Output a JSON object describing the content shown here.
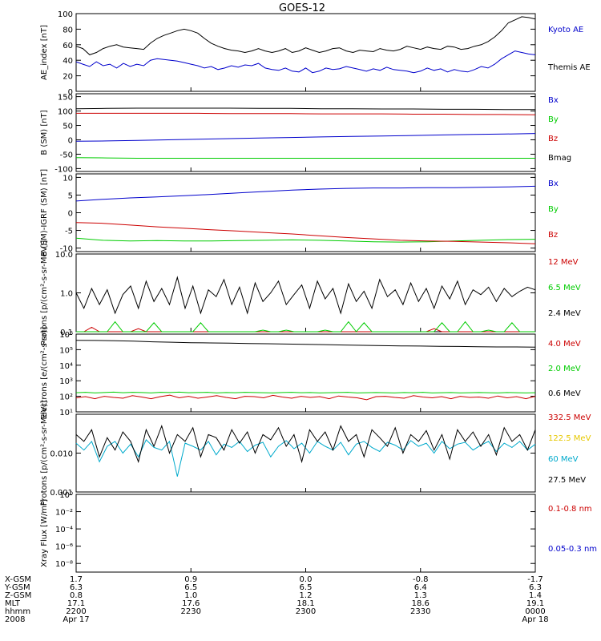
{
  "title": "GOES-12",
  "colors": {
    "black": "#000000",
    "blue": "#0000cc",
    "red": "#cc0000",
    "green": "#00cc00",
    "cyan": "#00aacc",
    "yellow": "#e6c800"
  },
  "chart_data": [
    {
      "type": "line",
      "ylabel": "AE_index [nT]",
      "scale": "linear",
      "ylim": [
        0,
        100
      ],
      "ticks": [
        "0",
        "20",
        "40",
        "60",
        "80",
        "100"
      ],
      "ticks_v": [
        0,
        20,
        40,
        60,
        80,
        100
      ],
      "series": [
        {
          "name": "Kyoto AE",
          "color": "blue",
          "values": [
            38,
            35,
            32,
            38,
            33,
            35,
            30,
            36,
            32,
            35,
            33,
            40,
            42,
            41,
            40,
            39,
            37,
            35,
            33,
            30,
            32,
            28,
            30,
            33,
            31,
            34,
            33,
            36,
            30,
            28,
            27,
            30,
            26,
            25,
            30,
            24,
            26,
            30,
            28,
            29,
            32,
            30,
            28,
            26,
            29,
            27,
            31,
            28,
            27,
            26,
            24,
            26,
            30,
            27,
            29,
            25,
            28,
            26,
            25,
            28,
            32,
            30,
            35,
            42,
            47,
            52,
            50,
            48,
            47
          ]
        },
        {
          "name": "Themis AE",
          "color": "black",
          "values": [
            58,
            55,
            47,
            50,
            55,
            58,
            60,
            57,
            56,
            55,
            54,
            62,
            68,
            72,
            75,
            78,
            80,
            78,
            75,
            68,
            62,
            58,
            55,
            53,
            52,
            50,
            52,
            55,
            52,
            50,
            52,
            55,
            50,
            52,
            56,
            53,
            50,
            52,
            55,
            56,
            52,
            50,
            53,
            52,
            51,
            55,
            53,
            52,
            54,
            58,
            56,
            54,
            57,
            55,
            54,
            58,
            57,
            54,
            55,
            58,
            60,
            64,
            70,
            78,
            88,
            92,
            96,
            95,
            93
          ]
        }
      ]
    },
    {
      "type": "line",
      "ylabel": "B (SM) [nT]",
      "scale": "linear",
      "ylim": [
        -110,
        160
      ],
      "ticks": [
        "-100",
        "-50",
        "0",
        "50",
        "100",
        "150"
      ],
      "ticks_v": [
        -100,
        -50,
        0,
        50,
        100,
        150
      ],
      "series": [
        {
          "name": "Bx",
          "color": "blue",
          "values": [
            -5,
            -4,
            -2,
            0,
            2,
            4,
            6,
            8,
            10,
            12,
            13,
            15,
            17,
            19,
            20,
            22
          ]
        },
        {
          "name": "By",
          "color": "green",
          "values": [
            -62,
            -63,
            -64,
            -64,
            -64,
            -64,
            -64,
            -64,
            -64,
            -64,
            -64,
            -64,
            -64,
            -64,
            -64,
            -64
          ]
        },
        {
          "name": "Bz",
          "color": "red",
          "values": [
            92,
            92,
            92,
            92,
            92,
            91,
            91,
            91,
            90,
            90,
            90,
            89,
            89,
            88,
            88,
            87
          ]
        },
        {
          "name": "Bmag",
          "color": "black",
          "values": [
            108,
            109,
            110,
            110,
            110,
            110,
            109,
            109,
            108,
            108,
            107,
            107,
            106,
            106,
            105,
            105
          ]
        }
      ]
    },
    {
      "type": "line",
      "ylabel": "B (SM)-IGRF (SM) [nT]",
      "scale": "linear",
      "ylim": [
        -11,
        11
      ],
      "ticks": [
        "-10",
        "-5",
        "0",
        "5",
        "10"
      ],
      "ticks_v": [
        -10,
        -5,
        0,
        5,
        10
      ],
      "series": [
        {
          "name": "Bx",
          "color": "blue",
          "values": [
            3.3,
            3.8,
            4.2,
            4.5,
            4.8,
            5.2,
            5.6,
            6.0,
            6.4,
            6.7,
            6.9,
            7.0,
            7.0,
            7.1,
            7.1,
            7.2,
            7.3,
            7.5
          ]
        },
        {
          "name": "By",
          "color": "green",
          "values": [
            -7.2,
            -7.8,
            -8.0,
            -7.9,
            -8.0,
            -8.0,
            -7.9,
            -7.8,
            -7.7,
            -7.8,
            -8.0,
            -8.2,
            -8.3,
            -8.2,
            -8.0,
            -7.8,
            -7.6,
            -7.5
          ]
        },
        {
          "name": "Bz",
          "color": "red",
          "values": [
            -2.8,
            -3.0,
            -3.5,
            -4.0,
            -4.4,
            -4.8,
            -5.2,
            -5.6,
            -6.0,
            -6.5,
            -7.0,
            -7.4,
            -7.8,
            -8.0,
            -8.1,
            -8.3,
            -8.5,
            -8.8
          ]
        }
      ]
    },
    {
      "type": "line",
      "ylabel": "Protons [p/(cm²-s-sr-MeV)]",
      "scale": "log",
      "ylim": [
        0.1,
        10
      ],
      "ticks": [
        "0.1",
        "1.0",
        "10.0"
      ],
      "ticks_v": [
        0.1,
        1,
        10
      ],
      "series": [
        {
          "name": "12 MeV",
          "color": "red",
          "values": [
            0.08,
            0.08,
            0.13,
            0.08,
            0.08,
            0.08,
            0.08,
            0.08,
            0.12,
            0.08,
            0.08,
            0.08,
            0.08,
            0.08,
            0.08,
            0.08,
            0.08,
            0.08,
            0.08,
            0.08,
            0.08,
            0.08,
            0.08,
            0.08,
            0.08,
            0.08,
            0.08,
            0.08,
            0.08,
            0.08,
            0.08,
            0.08,
            0.08,
            0.08,
            0.08,
            0.08,
            0.08,
            0.08,
            0.08,
            0.08,
            0.08,
            0.08,
            0.08,
            0.08,
            0.08,
            0.08,
            0.12,
            0.08,
            0.08,
            0.08,
            0.08,
            0.08,
            0.08,
            0.08,
            0.08,
            0.08,
            0.08,
            0.08,
            0.08,
            0.08
          ]
        },
        {
          "name": "6.5 MeV",
          "color": "green",
          "values": [
            0.08,
            0.08,
            0.08,
            0.08,
            0.08,
            0.18,
            0.08,
            0.08,
            0.08,
            0.08,
            0.17,
            0.08,
            0.08,
            0.08,
            0.08,
            0.08,
            0.17,
            0.08,
            0.08,
            0.08,
            0.08,
            0.08,
            0.08,
            0.08,
            0.11,
            0.08,
            0.08,
            0.11,
            0.08,
            0.08,
            0.08,
            0.08,
            0.11,
            0.08,
            0.08,
            0.18,
            0.08,
            0.17,
            0.08,
            0.08,
            0.08,
            0.08,
            0.08,
            0.08,
            0.08,
            0.08,
            0.08,
            0.17,
            0.08,
            0.08,
            0.18,
            0.08,
            0.08,
            0.11,
            0.08,
            0.08,
            0.17,
            0.08,
            0.08,
            0.08
          ]
        },
        {
          "name": "2.4 MeV",
          "color": "black",
          "values": [
            1.0,
            0.4,
            1.3,
            0.5,
            1.2,
            0.3,
            0.9,
            1.5,
            0.4,
            2.0,
            0.6,
            1.3,
            0.5,
            2.5,
            0.4,
            1.5,
            0.3,
            1.2,
            0.8,
            2.2,
            0.5,
            1.4,
            0.3,
            1.8,
            0.6,
            1.0,
            2.0,
            0.5,
            0.9,
            1.6,
            0.4,
            2.0,
            0.7,
            1.3,
            0.3,
            1.7,
            0.6,
            1.1,
            0.4,
            2.2,
            0.8,
            1.2,
            0.5,
            1.8,
            0.6,
            1.3,
            0.4,
            1.5,
            0.7,
            2.0,
            0.5,
            1.2,
            0.9,
            1.4,
            0.6,
            1.3,
            0.8,
            1.1,
            1.4,
            1.2
          ]
        }
      ]
    },
    {
      "type": "line",
      "ylabel": "Electrons [e/(cm²-s-sr)]",
      "scale": "log",
      "ylim": [
        10,
        1000000
      ],
      "ticks": [
        "10¹",
        "10²",
        "10³",
        "10⁴",
        "10⁵",
        "10⁶"
      ],
      "ticks_v": [
        10,
        100,
        1000,
        10000,
        100000,
        1000000
      ],
      "series": [
        {
          "name": "4.0 MeV",
          "color": "red",
          "values": [
            80,
            95,
            70,
            100,
            85,
            75,
            110,
            90,
            70,
            95,
            120,
            80,
            100,
            75,
            90,
            110,
            85,
            70,
            100,
            95,
            80,
            115,
            90,
            75,
            100,
            85,
            95,
            70,
            105,
            90,
            80,
            60,
            95,
            100,
            85,
            75,
            110,
            90,
            80,
            95,
            70,
            100,
            85,
            90,
            75,
            105,
            80,
            95,
            70,
            100
          ]
        },
        {
          "name": "2.0 MeV",
          "color": "green",
          "values": [
            170,
            180,
            165,
            175,
            185,
            170,
            180,
            175,
            165,
            180,
            175,
            185,
            170,
            175,
            180,
            165,
            175,
            170,
            180,
            175,
            170,
            165,
            175,
            180,
            170,
            175,
            165,
            170,
            175,
            180,
            165,
            170,
            175,
            170,
            165,
            175,
            170,
            180,
            165,
            170,
            175,
            165,
            170,
            175,
            170,
            165,
            175,
            170,
            165,
            170
          ]
        },
        {
          "name": "0.6 MeV",
          "color": "black",
          "values": [
            400000,
            390000,
            380000,
            350000,
            320000,
            300000,
            280000,
            270000,
            260000,
            250000,
            240000,
            230000,
            220000,
            210000,
            200000,
            190000,
            180000,
            175000,
            170000,
            165000,
            160000,
            155000,
            150000,
            150000,
            145000
          ]
        }
      ]
    },
    {
      "type": "line",
      "ylabel": "Protons [p/(cm²-s-sr-MeV)]",
      "scale": "log",
      "ylim": [
        0.001,
        0.1
      ],
      "ticks": [
        "0.001",
        "0.010"
      ],
      "ticks_v": [
        0.001,
        0.01
      ],
      "series": [
        {
          "name": "332.5 MeV",
          "color": "red",
          "values": []
        },
        {
          "name": "122.5 MeV",
          "color": "yellow",
          "values": []
        },
        {
          "name": "60 MeV",
          "color": "cyan",
          "values": [
            0.018,
            0.012,
            0.02,
            0.006,
            0.015,
            0.02,
            0.01,
            0.017,
            0.008,
            0.022,
            0.014,
            0.012,
            0.02,
            0.0025,
            0.018,
            0.015,
            0.012,
            0.02,
            0.009,
            0.017,
            0.014,
            0.02,
            0.011,
            0.016,
            0.019,
            0.008,
            0.015,
            0.021,
            0.013,
            0.018,
            0.01,
            0.02,
            0.015,
            0.012,
            0.019,
            0.009,
            0.017,
            0.02,
            0.014,
            0.011,
            0.019,
            0.016,
            0.012,
            0.021,
            0.015,
            0.018,
            0.01,
            0.02,
            0.013,
            0.017,
            0.019,
            0.012,
            0.016,
            0.02,
            0.011,
            0.018,
            0.014,
            0.02,
            0.012,
            0.017
          ]
        },
        {
          "name": "27.5 MeV",
          "color": "black",
          "values": [
            0.03,
            0.02,
            0.04,
            0.008,
            0.025,
            0.012,
            0.035,
            0.02,
            0.006,
            0.04,
            0.015,
            0.05,
            0.01,
            0.03,
            0.02,
            0.045,
            0.008,
            0.03,
            0.025,
            0.012,
            0.04,
            0.018,
            0.035,
            0.01,
            0.03,
            0.022,
            0.045,
            0.015,
            0.03,
            0.006,
            0.04,
            0.02,
            0.035,
            0.012,
            0.05,
            0.02,
            0.03,
            0.008,
            0.04,
            0.025,
            0.015,
            0.045,
            0.01,
            0.03,
            0.02,
            0.038,
            0.012,
            0.03,
            0.007,
            0.04,
            0.02,
            0.035,
            0.015,
            0.03,
            0.009,
            0.045,
            0.02,
            0.03,
            0.012,
            0.04
          ]
        }
      ]
    },
    {
      "type": "line",
      "ylabel": "Xray Flux [W/m²]",
      "scale": "log",
      "ylim": [
        1e-09,
        1
      ],
      "ticks": [
        "10⁻⁸",
        "10⁻⁶",
        "10⁻⁴",
        "10⁻²",
        "10⁰"
      ],
      "ticks_v": [
        1e-08,
        1e-06,
        0.0001,
        0.01,
        1
      ],
      "series": [
        {
          "name": "0.1-0.8 nm",
          "color": "red",
          "values": []
        },
        {
          "name": "0.05-0.3 nm",
          "color": "blue",
          "values": []
        }
      ]
    }
  ],
  "footer": {
    "rows": [
      {
        "label": "X-GSM",
        "values": [
          "1.7",
          "0.9",
          "0.0",
          "-0.8",
          "-1.7"
        ]
      },
      {
        "label": "Y-GSM",
        "values": [
          "6.3",
          "6.5",
          "6.5",
          "6.4",
          "6.3"
        ]
      },
      {
        "label": "Z-GSM",
        "values": [
          "0.8",
          "1.0",
          "1.2",
          "1.3",
          "1.4"
        ]
      },
      {
        "label": "MLT",
        "values": [
          "17.1",
          "17.6",
          "18.1",
          "18.6",
          "19.1"
        ]
      },
      {
        "label": "hhmm",
        "values": [
          "2200",
          "2230",
          "2300",
          "2330",
          "0000"
        ]
      },
      {
        "label": "2008",
        "values": [
          "Apr 17",
          "",
          "",
          "",
          "Apr 18"
        ]
      }
    ]
  }
}
